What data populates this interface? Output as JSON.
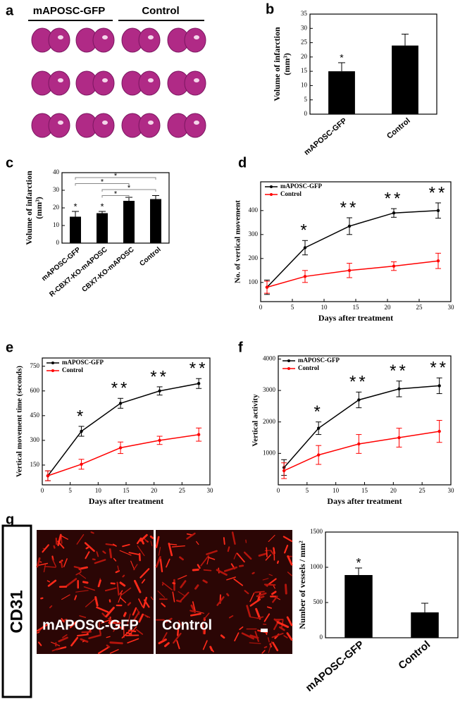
{
  "panel_labels": [
    "a",
    "b",
    "c",
    "d",
    "e",
    "f",
    "g"
  ],
  "panel_a": {
    "groups": [
      "mAPOSC-GFP",
      "Control"
    ]
  },
  "panel_g_image": {
    "stain": "CD31",
    "labels": [
      "mAPOSC-GFP",
      "Control"
    ]
  },
  "chart_data": [
    {
      "type": "bar",
      "ylabel": [
        "Volume of infarction",
        "(mm³)"
      ],
      "categories": [
        "mAPOSC-GFP",
        "Control"
      ],
      "values": [
        15,
        24
      ],
      "errors": [
        3,
        4
      ],
      "annotations": [
        "*",
        null
      ],
      "color": "#000000",
      "ylim": [
        0,
        35
      ],
      "yticks": [
        0,
        5,
        10,
        15,
        20,
        25,
        30,
        35
      ]
    },
    {
      "type": "bar",
      "ylabel": [
        "Volume of infarction",
        "(mm³)"
      ],
      "categories": [
        "mAPOSC-GFP",
        "R-CBX7-KO-mAPOSC",
        "CBX7-KO-mAPOSC",
        "Control"
      ],
      "values": [
        15,
        17,
        24,
        25
      ],
      "errors": [
        3,
        1,
        2,
        2
      ],
      "annotations": [
        "*",
        "*",
        null,
        null
      ],
      "color": "#000000",
      "brackets": [
        {
          "label": "*",
          "span": [
            0,
            3
          ]
        },
        {
          "label": "*",
          "span": [
            0,
            2
          ]
        },
        {
          "label": "*",
          "span": [
            1,
            3
          ]
        },
        {
          "label": "*",
          "span": [
            1,
            2
          ]
        }
      ],
      "ylim": [
        0,
        40
      ],
      "yticks": [
        0,
        10,
        20,
        30,
        40
      ]
    },
    {
      "type": "line",
      "ylabel": [
        "No. of vertical movement"
      ],
      "xlabel": "Days after treatment",
      "legend": "upper left",
      "x": [
        1,
        7,
        14,
        21,
        28
      ],
      "series": [
        {
          "name": "mAPOSC-GFP",
          "color": "#000000",
          "values": [
            80,
            245,
            335,
            390,
            400
          ],
          "errors": [
            30,
            30,
            35,
            18,
            32
          ],
          "annotations": [
            null,
            "*",
            "**",
            "**",
            "**"
          ]
        },
        {
          "name": "Control",
          "color": "#ff0000",
          "values": [
            80,
            125,
            150,
            168,
            190
          ],
          "errors": [
            25,
            25,
            30,
            18,
            32
          ],
          "annotations": [
            null,
            null,
            null,
            null,
            null
          ]
        }
      ],
      "xlim": [
        0,
        30
      ],
      "xticks": [
        0,
        5,
        10,
        15,
        20,
        25,
        30
      ],
      "ylim": [
        20,
        520
      ],
      "yticks": [
        100,
        200,
        300,
        400
      ]
    },
    {
      "type": "line",
      "ylabel": [
        "Vertical movement time (seconds)"
      ],
      "xlabel": "Days after treatment",
      "legend": "upper left",
      "x": [
        1,
        7,
        14,
        21,
        28
      ],
      "series": [
        {
          "name": "mAPOSC-GFP",
          "color": "#000000",
          "values": [
            85,
            355,
            525,
            600,
            645
          ],
          "errors": [
            30,
            30,
            30,
            25,
            30
          ],
          "annotations": [
            null,
            "*",
            "**",
            "**",
            "**"
          ]
        },
        {
          "name": "Control",
          "color": "#ff0000",
          "values": [
            85,
            155,
            255,
            300,
            335
          ],
          "errors": [
            30,
            30,
            35,
            25,
            40
          ],
          "annotations": [
            null,
            null,
            null,
            null,
            null
          ]
        }
      ],
      "xlim": [
        0,
        30
      ],
      "xticks": [
        0,
        5,
        10,
        15,
        20,
        25,
        30
      ],
      "ylim": [
        30,
        800
      ],
      "yticks": [
        150,
        300,
        450,
        600,
        750
      ]
    },
    {
      "type": "line",
      "ylabel": [
        "Vertical activity"
      ],
      "xlabel": "Days after treatment",
      "legend": "upper left",
      "x": [
        1,
        7,
        14,
        21,
        28
      ],
      "series": [
        {
          "name": "mAPOSC-GFP",
          "color": "#000000",
          "values": [
            550,
            1800,
            2700,
            3050,
            3150
          ],
          "errors": [
            250,
            200,
            250,
            250,
            250
          ],
          "annotations": [
            null,
            "*",
            "**",
            "**",
            "**"
          ]
        },
        {
          "name": "Control",
          "color": "#ff0000",
          "values": [
            450,
            950,
            1300,
            1500,
            1700
          ],
          "errors": [
            250,
            300,
            300,
            300,
            350
          ],
          "annotations": [
            null,
            null,
            null,
            null,
            null
          ]
        }
      ],
      "xlim": [
        0,
        30
      ],
      "xticks": [
        0,
        5,
        10,
        15,
        20,
        25,
        30
      ],
      "ylim": [
        0,
        4100
      ],
      "yticks": [
        1000,
        2000,
        3000,
        4000
      ]
    },
    {
      "type": "bar",
      "ylabel": [
        "Number of vessels / mm²"
      ],
      "categories": [
        "mAPOSC-GFP",
        "Control"
      ],
      "values": [
        890,
        360
      ],
      "errors": [
        100,
        130
      ],
      "annotations": [
        "*",
        null
      ],
      "color": "#000000",
      "ylim": [
        0,
        1500
      ],
      "yticks": [
        0,
        500,
        1000,
        1500
      ]
    }
  ]
}
